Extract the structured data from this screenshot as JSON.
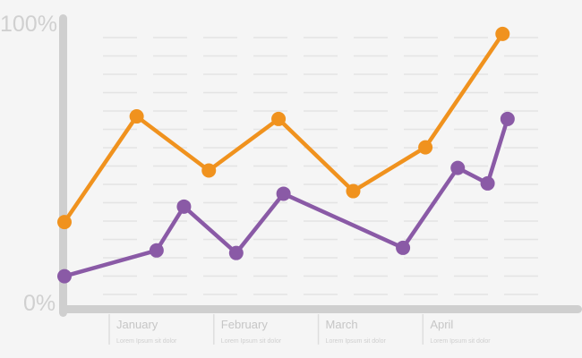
{
  "chart_data": {
    "type": "line",
    "y_tick_labels": {
      "top": "100%",
      "bottom": "0%"
    },
    "ylim": [
      0,
      100
    ],
    "xlim": [
      0,
      100
    ],
    "categories": [
      {
        "label": "January",
        "caption": "Lorem Ipsum sit dolor",
        "x": 9
      },
      {
        "label": "February",
        "caption": "Lorem Ipsum sit dolor",
        "x": 30
      },
      {
        "label": "March",
        "caption": "Lorem Ipsum sit dolor",
        "x": 51
      },
      {
        "label": "April",
        "caption": "Lorem Ipsum sit dolor",
        "x": 72
      }
    ],
    "series": [
      {
        "color": "#f0921e",
        "points": [
          {
            "x": 0,
            "y": 26
          },
          {
            "x": 14.5,
            "y": 67
          },
          {
            "x": 29,
            "y": 46
          },
          {
            "x": 43,
            "y": 66
          },
          {
            "x": 58,
            "y": 38
          },
          {
            "x": 72.5,
            "y": 55
          },
          {
            "x": 88,
            "y": 99
          }
        ]
      },
      {
        "color": "#8a5aa6",
        "points": [
          {
            "x": 0,
            "y": 5
          },
          {
            "x": 18.5,
            "y": 15
          },
          {
            "x": 24,
            "y": 32
          },
          {
            "x": 34.5,
            "y": 14
          },
          {
            "x": 44,
            "y": 37
          },
          {
            "x": 68,
            "y": 16
          },
          {
            "x": 79,
            "y": 47
          },
          {
            "x": 85,
            "y": 41
          },
          {
            "x": 89,
            "y": 66
          }
        ]
      }
    ],
    "grid": true,
    "legend": "none"
  }
}
